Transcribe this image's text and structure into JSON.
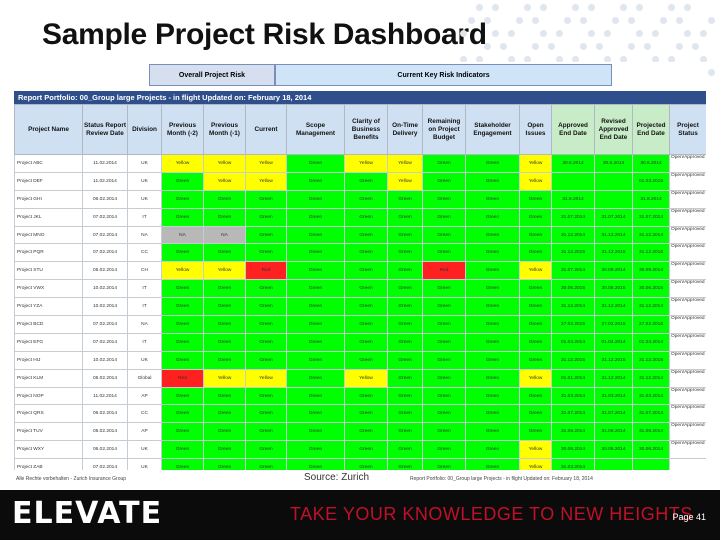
{
  "title": "Sample Project Risk Dashboard",
  "bands": {
    "overall": "Overall Project Risk",
    "kri": "Current Key Risk Indicators"
  },
  "portfolio": "Report Portfolio: 00_Group large Projects - in flight Updated on: February 18, 2014",
  "headers": [
    "Project Name",
    "Status Report Review Date",
    "Division",
    "Previous Month (-2)",
    "Previous Month (-1)",
    "Current",
    "Scope Management",
    "Clarity of Business Benefits",
    "On-Time Delivery",
    "Remaining on Project Budget",
    "Stakeholder Engagement",
    "Open Issues",
    "Approved End Date",
    "Revised Approved End Date",
    "Projected End Date",
    "Project Status"
  ],
  "rows": [
    {
      "name": "Project ABC",
      "date": "11.02.2014",
      "div": "UK",
      "c": [
        "y",
        "y",
        "y",
        "g",
        "y",
        "y",
        "g",
        "g",
        "y"
      ],
      "labels": [
        "Yellow",
        "Yellow",
        "Yellow",
        "Green",
        "Yellow",
        "Yellow",
        "Green",
        "Green",
        "Yellow"
      ],
      "ed": [
        "30.6.2014",
        "30.6.2014",
        "30.6.2014"
      ],
      "status": "Open/Approved"
    },
    {
      "name": "Project DEF",
      "date": "11.02.2014",
      "div": "UK",
      "c": [
        "g",
        "y",
        "y",
        "g",
        "g",
        "y",
        "g",
        "g",
        "y"
      ],
      "labels": [
        "Green",
        "Yellow",
        "Yellow",
        "Green",
        "Green",
        "Yellow",
        "Green",
        "Green",
        "Yellow"
      ],
      "ed": [
        "",
        "",
        "01.03.2015"
      ],
      "status": "Open/Approved"
    },
    {
      "name": "Project GHI",
      "date": "06.02.2014",
      "div": "UK",
      "c": [
        "g",
        "g",
        "g",
        "g",
        "g",
        "g",
        "g",
        "g",
        "g"
      ],
      "labels": [
        "Green",
        "Green",
        "Green",
        "Green",
        "Green",
        "Green",
        "Green",
        "Green",
        "Green"
      ],
      "ed": [
        "31.8.2014",
        "",
        "31.8.2014"
      ],
      "status": "Open/Approved"
    },
    {
      "name": "Project JKL",
      "date": "07.02.2014",
      "div": "IT",
      "c": [
        "g",
        "g",
        "g",
        "g",
        "g",
        "g",
        "g",
        "g",
        "g"
      ],
      "labels": [
        "Green",
        "Green",
        "Green",
        "Green",
        "Green",
        "Green",
        "Green",
        "Green",
        "Green"
      ],
      "ed": [
        "31.07.2014",
        "31.07.2014",
        "31.07.2014"
      ],
      "status": "Open/Approved"
    },
    {
      "name": "Project MNO",
      "date": "07.02.2014",
      "div": "NA",
      "c": [
        "n",
        "n",
        "g",
        "g",
        "g",
        "g",
        "g",
        "g",
        "g"
      ],
      "labels": [
        "NA",
        "NA",
        "Green",
        "Green",
        "Green",
        "Green",
        "Green",
        "Green",
        "Green"
      ],
      "ed": [
        "31.12.2014",
        "31.12.2014",
        "31.12.2014"
      ],
      "status": "Open/Approved"
    },
    {
      "name": "Project PQR",
      "date": "07.02.2014",
      "div": "CC",
      "c": [
        "g",
        "g",
        "g",
        "g",
        "g",
        "g",
        "g",
        "g",
        "g"
      ],
      "labels": [
        "Green",
        "Green",
        "Green",
        "Green",
        "Green",
        "Green",
        "Green",
        "Green",
        "Green"
      ],
      "ed": [
        "31.12.2015",
        "31.12.2015",
        "31.12.2015"
      ],
      "status": "Open/Approved"
    },
    {
      "name": "Project STU",
      "date": "05.02.2014",
      "div": "CH",
      "c": [
        "y",
        "y",
        "r",
        "g",
        "g",
        "g",
        "r",
        "g",
        "y"
      ],
      "labels": [
        "Yellow",
        "Yellow",
        "Red",
        "Green",
        "Green",
        "Green",
        "Red",
        "Green",
        "Yellow"
      ],
      "ed": [
        "31.07.2014",
        "30.09.2014",
        "30.09.2014"
      ],
      "status": "Open/Approved"
    },
    {
      "name": "Project VWX",
      "date": "10.02.2014",
      "div": "IT",
      "c": [
        "g",
        "g",
        "g",
        "g",
        "g",
        "g",
        "g",
        "g",
        "g"
      ],
      "labels": [
        "Green",
        "Green",
        "Green",
        "Green",
        "Green",
        "Green",
        "Green",
        "Green",
        "Green"
      ],
      "ed": [
        "30.06.2015",
        "30.06.2015",
        "30.06.2015"
      ],
      "status": "Open/Approved"
    },
    {
      "name": "Project YZA",
      "date": "10.02.2014",
      "div": "IT",
      "c": [
        "g",
        "g",
        "g",
        "g",
        "g",
        "g",
        "g",
        "g",
        "g"
      ],
      "labels": [
        "Green",
        "Green",
        "Green",
        "Green",
        "Green",
        "Green",
        "Green",
        "Green",
        "Green"
      ],
      "ed": [
        "31.12.2014",
        "31.12.2014",
        "31.12.2014"
      ],
      "status": "Open/Approved"
    },
    {
      "name": "Project BCD",
      "date": "07.02.2014",
      "div": "NA",
      "c": [
        "g",
        "g",
        "g",
        "g",
        "g",
        "g",
        "g",
        "g",
        "g"
      ],
      "labels": [
        "Green",
        "Green",
        "Green",
        "Green",
        "Green",
        "Green",
        "Green",
        "Green",
        "Green"
      ],
      "ed": [
        "27.02.2015",
        "27.02.2015",
        "27.02.2015"
      ],
      "status": "Open/Approved"
    },
    {
      "name": "Project EFG",
      "date": "07.02.2014",
      "div": "IT",
      "c": [
        "g",
        "g",
        "g",
        "g",
        "g",
        "g",
        "g",
        "g",
        "g"
      ],
      "labels": [
        "Green",
        "Green",
        "Green",
        "Green",
        "Green",
        "Green",
        "Green",
        "Green",
        "Green"
      ],
      "ed": [
        "01.04.2014",
        "01.04.2014",
        "01.04.2014"
      ],
      "status": "Open/Approved"
    },
    {
      "name": "Project HIJ",
      "date": "10.02.2014",
      "div": "UK",
      "c": [
        "g",
        "g",
        "g",
        "g",
        "g",
        "g",
        "g",
        "g",
        "g"
      ],
      "labels": [
        "Green",
        "Green",
        "Green",
        "Green",
        "Green",
        "Green",
        "Green",
        "Green",
        "Green"
      ],
      "ed": [
        "31.12.2015",
        "31.12.2015",
        "31.12.2015"
      ],
      "status": "Open/Approved"
    },
    {
      "name": "Project KLM",
      "date": "05.02.2014",
      "div": "Global",
      "c": [
        "r",
        "y",
        "y",
        "g",
        "y",
        "g",
        "g",
        "g",
        "y"
      ],
      "labels": [
        "Red",
        "Yellow",
        "Yellow",
        "Green",
        "Yellow",
        "Green",
        "Green",
        "Green",
        "Yellow"
      ],
      "ed": [
        "01.01.2014",
        "31.12.2014",
        "31.12.2014"
      ],
      "status": "Open/Approved"
    },
    {
      "name": "Project NOP",
      "date": "11.02.2014",
      "div": "AP",
      "c": [
        "g",
        "g",
        "g",
        "g",
        "g",
        "g",
        "g",
        "g",
        "g"
      ],
      "labels": [
        "Green",
        "Green",
        "Green",
        "Green",
        "Green",
        "Green",
        "Green",
        "Green",
        "Green"
      ],
      "ed": [
        "31.03.2014",
        "31.03.2014",
        "31.03.2014"
      ],
      "status": "Open/Approved"
    },
    {
      "name": "Project QRS",
      "date": "06.02.2014",
      "div": "CC",
      "c": [
        "g",
        "g",
        "g",
        "g",
        "g",
        "g",
        "g",
        "g",
        "g"
      ],
      "labels": [
        "Green",
        "Green",
        "Green",
        "Green",
        "Green",
        "Green",
        "Green",
        "Green",
        "Green"
      ],
      "ed": [
        "31.07.2014",
        "31.07.2014",
        "31.07.2014"
      ],
      "status": "Open/Approved"
    },
    {
      "name": "Project TUV",
      "date": "05.02.2014",
      "div": "AP",
      "c": [
        "g",
        "g",
        "g",
        "g",
        "g",
        "g",
        "g",
        "g",
        "g"
      ],
      "labels": [
        "Green",
        "Green",
        "Green",
        "Green",
        "Green",
        "Green",
        "Green",
        "Green",
        "Green"
      ],
      "ed": [
        "31.08.2014",
        "31.08.2014",
        "31.08.2014"
      ],
      "status": "Open/Approved"
    },
    {
      "name": "Project WXY",
      "date": "06.02.2014",
      "div": "UK",
      "c": [
        "g",
        "g",
        "g",
        "g",
        "g",
        "g",
        "g",
        "g",
        "y"
      ],
      "labels": [
        "Green",
        "Green",
        "Green",
        "Green",
        "Green",
        "Green",
        "Green",
        "Green",
        "Yellow"
      ],
      "ed": [
        "30.06.2014",
        "30.06.2014",
        "30.06.2014"
      ],
      "status": "Open/Approved"
    },
    {
      "name": "Project ZAB",
      "date": "07.02.2014",
      "div": "UK",
      "c": [
        "g",
        "g",
        "g",
        "g",
        "g",
        "g",
        "g",
        "g",
        "y"
      ],
      "labels": [
        "Green",
        "Green",
        "Green",
        "Green",
        "Green",
        "Green",
        "Green",
        "Green",
        "Yellow"
      ],
      "ed": [
        "31.03.2014",
        "",
        ""
      ],
      "status": ""
    }
  ],
  "footnote_left": "Alle Rechte vorbehalten - Zurich Insurance Group",
  "footnote_right": "Report Portfolio: 00_Group large Projects - in flight Updated on: February 18, 2014",
  "source": "Source: Zurich",
  "footer": {
    "logo": "ELEVATE",
    "tagline": "TAKE YOUR KNOWLEDGE TO NEW HEIGHTS",
    "page": "Page 41"
  }
}
